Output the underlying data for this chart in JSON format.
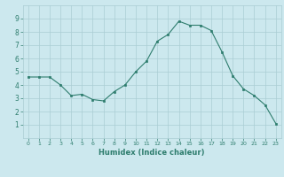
{
  "x": [
    0,
    1,
    2,
    3,
    4,
    5,
    6,
    7,
    8,
    9,
    10,
    11,
    12,
    13,
    14,
    15,
    16,
    17,
    18,
    19,
    20,
    21,
    22,
    23
  ],
  "y": [
    4.6,
    4.6,
    4.6,
    4.0,
    3.2,
    3.3,
    2.9,
    2.8,
    3.5,
    4.0,
    5.0,
    5.8,
    7.3,
    7.8,
    8.8,
    8.5,
    8.5,
    8.1,
    6.5,
    4.7,
    3.7,
    3.2,
    2.5,
    1.1
  ],
  "xlabel": "Humidex (Indice chaleur)",
  "ylim": [
    0,
    10
  ],
  "xlim_min": -0.5,
  "xlim_max": 23.5,
  "yticks": [
    1,
    2,
    3,
    4,
    5,
    6,
    7,
    8,
    9
  ],
  "xticks": [
    0,
    1,
    2,
    3,
    4,
    5,
    6,
    7,
    8,
    9,
    10,
    11,
    12,
    13,
    14,
    15,
    16,
    17,
    18,
    19,
    20,
    21,
    22,
    23
  ],
  "line_color": "#2e7d6e",
  "marker_color": "#2e7d6e",
  "bg_color": "#cce8ee",
  "grid_color": "#aacdd4",
  "axis_label_color": "#2e7d6e",
  "tick_color": "#2e7d6e"
}
